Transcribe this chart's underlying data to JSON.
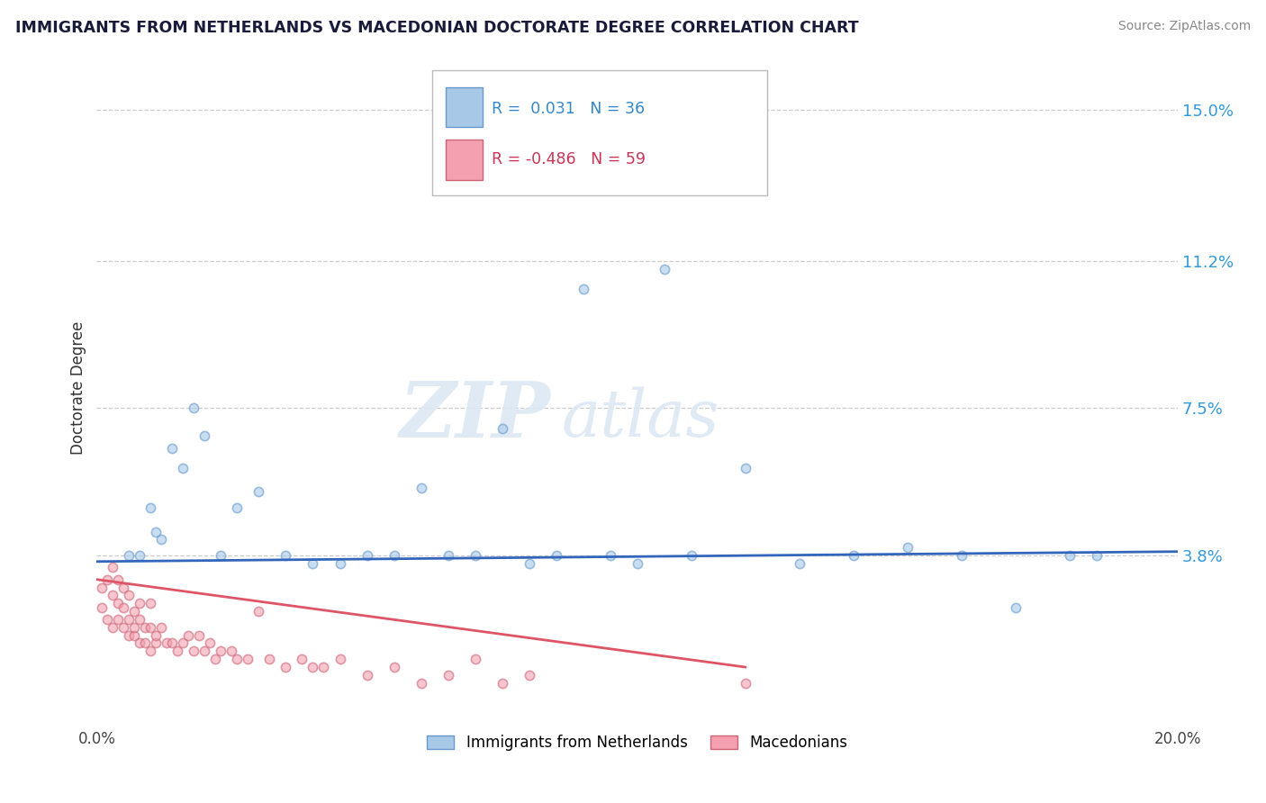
{
  "title": "IMMIGRANTS FROM NETHERLANDS VS MACEDONIAN DOCTORATE DEGREE CORRELATION CHART",
  "source": "Source: ZipAtlas.com",
  "ylabel_label": "Doctorate Degree",
  "y_tick_labels": [
    "3.8%",
    "7.5%",
    "11.2%",
    "15.0%"
  ],
  "y_tick_values": [
    0.038,
    0.075,
    0.112,
    0.15
  ],
  "xlim": [
    0.0,
    0.2
  ],
  "ylim": [
    -0.005,
    0.165
  ],
  "legend_series": [
    {
      "label": "Immigrants from Netherlands",
      "color": "#a8c8e8",
      "edge_color": "#6699cc",
      "R": "0.031",
      "N": "36"
    },
    {
      "label": "Macedonians",
      "color": "#f4a0b0",
      "edge_color": "#cc6677",
      "R": "-0.486",
      "N": "59"
    }
  ],
  "watermark_zip": "ZIP",
  "watermark_atlas": "atlas",
  "blue_scatter_x": [
    0.006,
    0.008,
    0.01,
    0.011,
    0.012,
    0.014,
    0.016,
    0.018,
    0.02,
    0.023,
    0.026,
    0.03,
    0.035,
    0.04,
    0.045,
    0.05,
    0.055,
    0.06,
    0.065,
    0.07,
    0.075,
    0.08,
    0.085,
    0.09,
    0.095,
    0.1,
    0.105,
    0.11,
    0.12,
    0.13,
    0.14,
    0.15,
    0.16,
    0.17,
    0.18,
    0.185
  ],
  "blue_scatter_y": [
    0.038,
    0.038,
    0.05,
    0.044,
    0.042,
    0.065,
    0.06,
    0.075,
    0.068,
    0.038,
    0.05,
    0.054,
    0.038,
    0.036,
    0.036,
    0.038,
    0.038,
    0.055,
    0.038,
    0.038,
    0.07,
    0.036,
    0.038,
    0.105,
    0.038,
    0.036,
    0.11,
    0.038,
    0.06,
    0.036,
    0.038,
    0.04,
    0.038,
    0.025,
    0.038,
    0.038
  ],
  "pink_scatter_x": [
    0.001,
    0.001,
    0.002,
    0.002,
    0.003,
    0.003,
    0.003,
    0.004,
    0.004,
    0.004,
    0.005,
    0.005,
    0.005,
    0.006,
    0.006,
    0.006,
    0.007,
    0.007,
    0.007,
    0.008,
    0.008,
    0.008,
    0.009,
    0.009,
    0.01,
    0.01,
    0.01,
    0.011,
    0.011,
    0.012,
    0.013,
    0.014,
    0.015,
    0.016,
    0.017,
    0.018,
    0.019,
    0.02,
    0.021,
    0.022,
    0.023,
    0.025,
    0.026,
    0.028,
    0.03,
    0.032,
    0.035,
    0.038,
    0.04,
    0.042,
    0.045,
    0.05,
    0.055,
    0.06,
    0.065,
    0.07,
    0.075,
    0.08,
    0.12
  ],
  "pink_scatter_y": [
    0.03,
    0.025,
    0.032,
    0.022,
    0.028,
    0.035,
    0.02,
    0.022,
    0.026,
    0.032,
    0.02,
    0.025,
    0.03,
    0.018,
    0.022,
    0.028,
    0.018,
    0.024,
    0.02,
    0.016,
    0.022,
    0.026,
    0.016,
    0.02,
    0.014,
    0.02,
    0.026,
    0.016,
    0.018,
    0.02,
    0.016,
    0.016,
    0.014,
    0.016,
    0.018,
    0.014,
    0.018,
    0.014,
    0.016,
    0.012,
    0.014,
    0.014,
    0.012,
    0.012,
    0.024,
    0.012,
    0.01,
    0.012,
    0.01,
    0.01,
    0.012,
    0.008,
    0.01,
    0.006,
    0.008,
    0.012,
    0.006,
    0.008,
    0.006
  ],
  "blue_line_x": [
    0.0,
    0.2
  ],
  "blue_line_y": [
    0.0365,
    0.039
  ],
  "pink_line_x": [
    0.0,
    0.12
  ],
  "pink_line_y": [
    0.032,
    0.01
  ],
  "grid_color": "#cccccc",
  "background_color": "#ffffff",
  "scatter_alpha": 0.6,
  "scatter_size": 55
}
